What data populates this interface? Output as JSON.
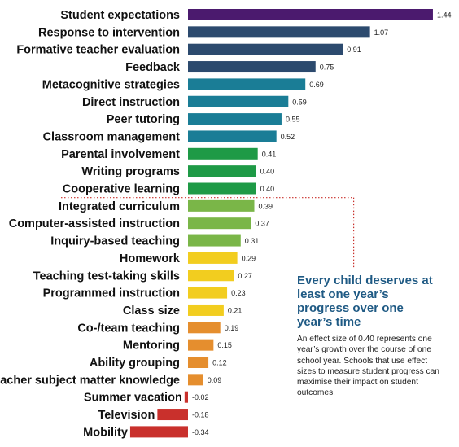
{
  "chart_data": {
    "type": "bar",
    "orientation": "horizontal",
    "categories": [
      "Student expectations",
      "Response to intervention",
      "Formative teacher evaluation",
      "Feedback",
      "Metacognitive strategies",
      "Direct instruction",
      "Peer tutoring",
      "Classroom management",
      "Parental involvement",
      "Writing programs",
      "Cooperative learning",
      "Integrated curriculum",
      "Computer-assisted instruction",
      "Inquiry-based teaching",
      "Homework",
      "Teaching test-taking skills",
      "Programmed instruction",
      "Class size",
      "Co-/team teaching",
      "Mentoring",
      "Ability grouping",
      "Teacher subject matter knowledge",
      "Summer vacation",
      "Television",
      "Mobility"
    ],
    "values": [
      1.44,
      1.07,
      0.91,
      0.75,
      0.69,
      0.59,
      0.55,
      0.52,
      0.41,
      0.4,
      0.4,
      0.39,
      0.37,
      0.31,
      0.29,
      0.27,
      0.23,
      0.21,
      0.19,
      0.15,
      0.12,
      0.09,
      -0.02,
      -0.18,
      -0.34
    ],
    "value_labels": [
      "1.44",
      "1.07",
      "0.91",
      "0.75",
      "0.69",
      "0.59",
      "0.55",
      "0.52",
      "0.41",
      "0.40",
      "0.40",
      "0.39",
      "0.37",
      "0.31",
      "0.29",
      "0.27",
      "0.23",
      "0.21",
      "0.19",
      "0.15",
      "0.12",
      "0.09",
      "-0.02",
      "-0.18",
      "-0.34"
    ],
    "bar_colors": [
      "#4b1a6e",
      "#2c4a6e",
      "#2c4a6e",
      "#2c4a6e",
      "#1a7d96",
      "#1a7d96",
      "#1a7d96",
      "#1a7d96",
      "#1e9a46",
      "#1e9a46",
      "#1e9a46",
      "#7ab648",
      "#7ab648",
      "#7ab648",
      "#f2cd1f",
      "#f2cd1f",
      "#f2cd1f",
      "#f2cd1f",
      "#e58e2e",
      "#e58e2e",
      "#e58e2e",
      "#e58e2e",
      "#c9302c",
      "#c9302c",
      "#c9302c"
    ],
    "xlim": [
      -0.34,
      1.44
    ],
    "grid": false,
    "legend": "none",
    "threshold_line": {
      "value": 0.4,
      "color": "#c9302c",
      "style": "dotted"
    }
  },
  "callout": {
    "title": "Every child deserves at least one year’s progress over one year’s time",
    "body": "An effect size of 0.40 represents one year’s growth over the course of one school year. Schools that use effect sizes to measure student progress can maximise their impact on student outcomes.",
    "title_color": "#1f5a84"
  }
}
